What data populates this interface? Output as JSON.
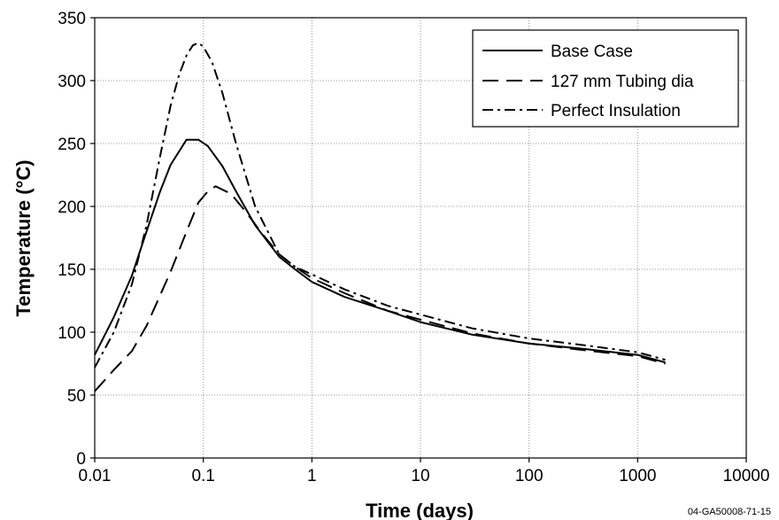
{
  "chart_data": {
    "type": "line",
    "xscale": "log",
    "xlabel": "Time (days)",
    "ylabel": "Temperature (°C)",
    "xlim": [
      0.01,
      10000
    ],
    "ylim": [
      0,
      350
    ],
    "xticks": [
      "0.01",
      "0.1",
      "1",
      "10",
      "100",
      "1000",
      "10000"
    ],
    "yticks": [
      "0",
      "50",
      "100",
      "150",
      "200",
      "250",
      "300",
      "350"
    ],
    "grid": true,
    "legend_position": "top-right",
    "figure_id": "04-GA50008-71-15",
    "colors": {
      "line": "#000000",
      "grid": "#9a9a9a",
      "background": "#ffffff"
    },
    "series": [
      {
        "name": "Base Case",
        "style": "solid",
        "x": [
          0.01,
          0.015,
          0.022,
          0.03,
          0.04,
          0.05,
          0.07,
          0.09,
          0.11,
          0.15,
          0.2,
          0.3,
          0.5,
          0.7,
          1,
          2,
          5,
          10,
          30,
          100,
          300,
          1000,
          1800
        ],
        "y": [
          82,
          112,
          145,
          180,
          212,
          233,
          253,
          253,
          248,
          232,
          212,
          185,
          160,
          150,
          140,
          128,
          117,
          108,
          98,
          91,
          87,
          82,
          76
        ]
      },
      {
        "name": "127 mm Tubing dia",
        "style": "dashed",
        "x": [
          0.01,
          0.015,
          0.022,
          0.03,
          0.05,
          0.07,
          0.09,
          0.11,
          0.13,
          0.18,
          0.25,
          0.35,
          0.5,
          0.7,
          1,
          2,
          5,
          10,
          30,
          100,
          300,
          1000,
          1800
        ],
        "y": [
          53,
          70,
          85,
          105,
          148,
          180,
          203,
          212,
          216,
          210,
          195,
          178,
          162,
          152,
          143,
          131,
          117,
          110,
          99,
          91,
          86,
          81,
          75
        ]
      },
      {
        "name": "Perfect Insulation",
        "style": "dash-dot",
        "x": [
          0.01,
          0.015,
          0.022,
          0.03,
          0.04,
          0.05,
          0.06,
          0.07,
          0.08,
          0.09,
          0.1,
          0.12,
          0.15,
          0.2,
          0.3,
          0.5,
          0.7,
          1,
          2,
          5,
          10,
          30,
          100,
          300,
          1000,
          1800
        ],
        "y": [
          72,
          100,
          138,
          185,
          240,
          280,
          305,
          320,
          328,
          330,
          327,
          315,
          290,
          250,
          200,
          162,
          152,
          146,
          134,
          121,
          114,
          103,
          95,
          90,
          84,
          78
        ]
      }
    ]
  }
}
